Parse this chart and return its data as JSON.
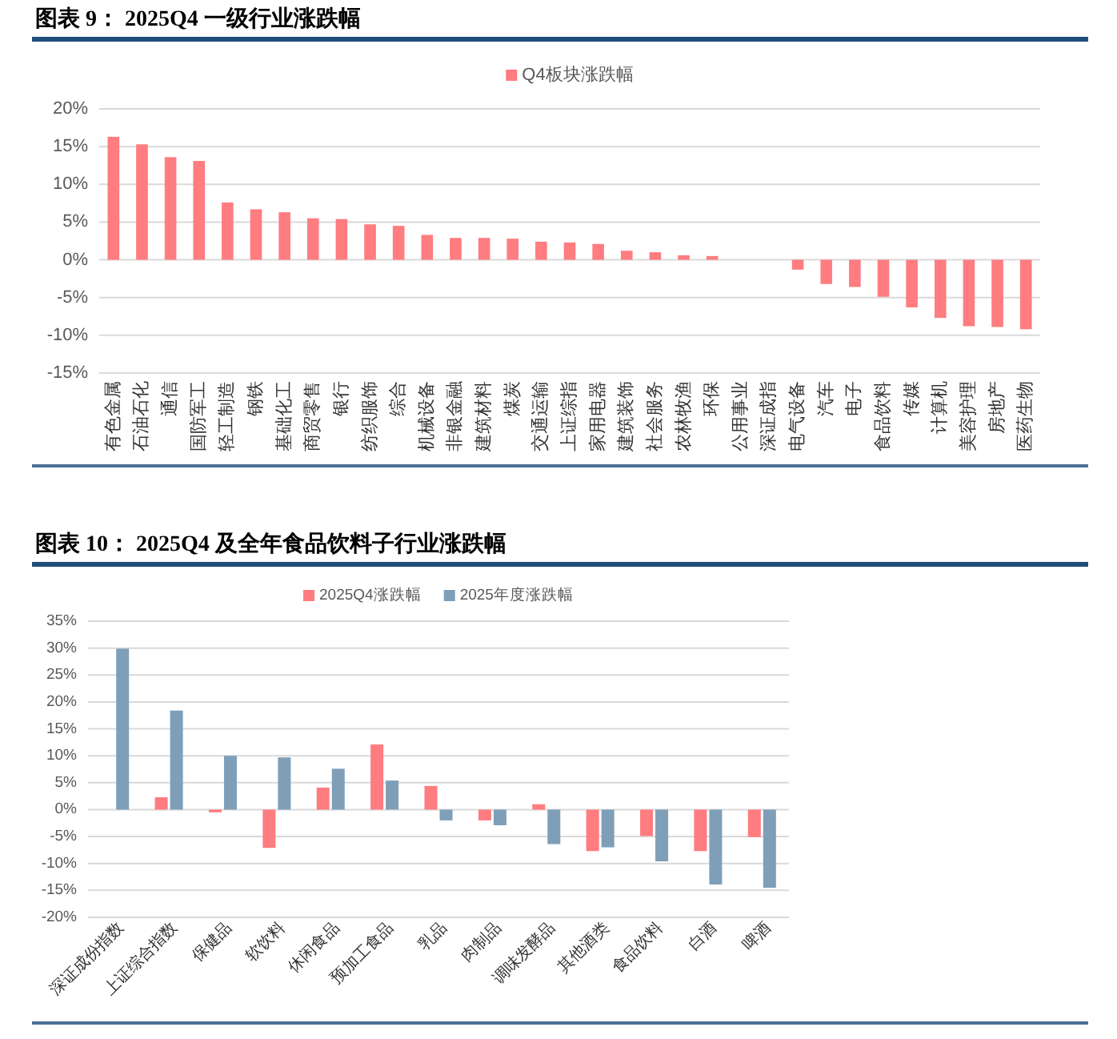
{
  "chart_data": [
    {
      "type": "bar",
      "title": "图表 9： 2025Q4 一级行业涨跌幅",
      "categories": [
        "有色金属",
        "石油石化",
        "通信",
        "国防军工",
        "轻工制造",
        "钢铁",
        "基础化工",
        "商贸零售",
        "银行",
        "纺织服饰",
        "综合",
        "机械设备",
        "非银金融",
        "建筑材料",
        "煤炭",
        "交通运输",
        "上证综指",
        "家用电器",
        "建筑装饰",
        "社会服务",
        "农林牧渔",
        "环保",
        "公用事业",
        "深证成指",
        "电气设备",
        "汽车",
        "电子",
        "食品饮料",
        "传媒",
        "计算机",
        "美容护理",
        "房地产",
        "医药生物"
      ],
      "series": [
        {
          "name": "Q4板块涨跌幅",
          "color": "#ff7c80",
          "values": [
            16.3,
            15.3,
            13.6,
            13.1,
            7.6,
            6.7,
            6.3,
            5.5,
            5.4,
            4.7,
            4.5,
            3.3,
            2.9,
            2.9,
            2.8,
            2.4,
            2.3,
            2.1,
            1.2,
            1.0,
            0.6,
            0.5,
            0,
            0,
            -1.3,
            -3.2,
            -3.6,
            -4.9,
            -6.3,
            -7.7,
            -8.8,
            -8.9,
            -9.2
          ]
        }
      ],
      "ylim": [
        -15,
        20
      ],
      "yticks": [
        {
          "value": -15,
          "label": "-15%"
        },
        {
          "value": -10,
          "label": "-10%"
        },
        {
          "value": -5,
          "label": "-5%"
        },
        {
          "value": 0,
          "label": "0%"
        },
        {
          "value": 5,
          "label": "5%"
        },
        {
          "value": 10,
          "label": "10%"
        },
        {
          "value": 15,
          "label": "15%"
        },
        {
          "value": 20,
          "label": "20%"
        }
      ],
      "grid": "y",
      "legend": "top"
    },
    {
      "type": "bar",
      "title": "图表 10： 2025Q4 及全年食品饮料子行业涨跌幅",
      "categories": [
        "深证成份指数",
        "上证综合指数",
        "保健品",
        "软饮料",
        "休闲食品",
        "预加工食品",
        "乳品",
        "肉制品",
        "调味发酵品",
        "其他酒类",
        "食品饮料",
        "白酒",
        "啤酒"
      ],
      "series": [
        {
          "name": "2025Q4涨跌幅",
          "color": "#ff7c80",
          "values": [
            0,
            2.3,
            -0.5,
            -7.1,
            4.1,
            12.1,
            4.4,
            -2.0,
            1.0,
            -7.7,
            -4.9,
            -7.7,
            -5.1
          ]
        },
        {
          "name": "2025年度涨跌幅",
          "color": "#7f9fb9",
          "values": [
            29.9,
            18.4,
            10.0,
            9.7,
            7.6,
            5.4,
            -2.0,
            -2.9,
            -6.4,
            -7.0,
            -9.6,
            -13.9,
            -14.5
          ]
        }
      ],
      "ylim": [
        -20,
        35
      ],
      "yticks": [
        {
          "value": -20,
          "label": "-20%"
        },
        {
          "value": -15,
          "label": "-15%"
        },
        {
          "value": -10,
          "label": "-10%"
        },
        {
          "value": -5,
          "label": "-5%"
        },
        {
          "value": 0,
          "label": "0%"
        },
        {
          "value": 5,
          "label": "5%"
        },
        {
          "value": 10,
          "label": "10%"
        },
        {
          "value": 15,
          "label": "15%"
        },
        {
          "value": 20,
          "label": "20%"
        },
        {
          "value": 25,
          "label": "25%"
        },
        {
          "value": 30,
          "label": "30%"
        },
        {
          "value": 35,
          "label": "35%"
        }
      ],
      "grid": "y",
      "legend": "top"
    }
  ]
}
